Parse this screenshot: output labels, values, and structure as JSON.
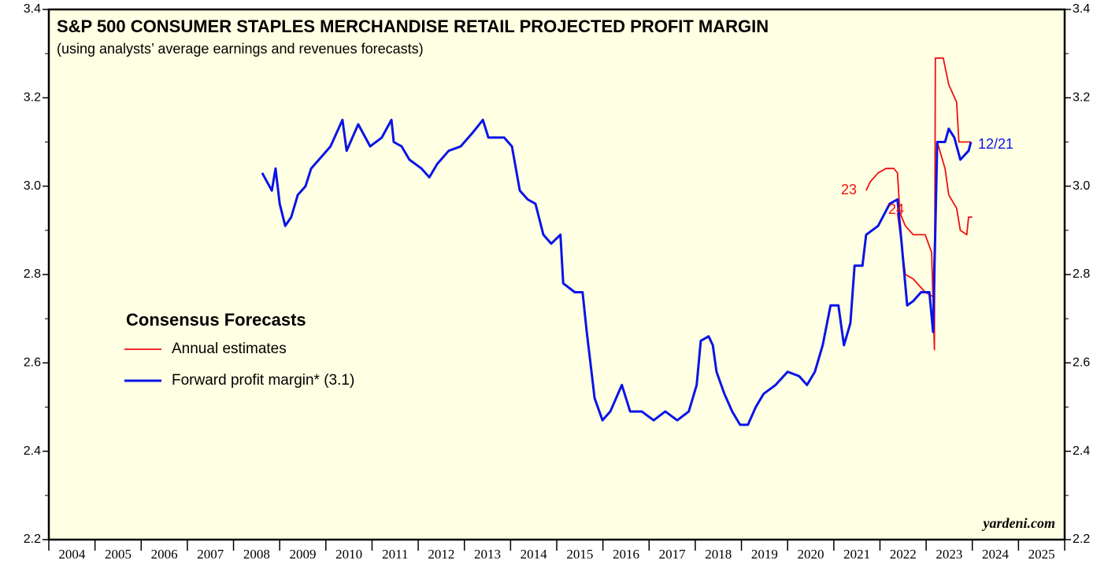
{
  "chart_data": {
    "type": "line",
    "title": "S&P 500 CONSUMER STAPLES MERCHANDISE RETAIL PROJECTED PROFIT MARGIN",
    "subtitle": "(using analysts’ average earnings and revenues forecasts)",
    "legend_title": "Consensus Forecasts",
    "source": "yardeni.com",
    "annotations": [
      "23",
      "24",
      "12/21"
    ],
    "xlim": [
      2004,
      2026
    ],
    "xticks": [
      2004,
      2005,
      2006,
      2007,
      2008,
      2009,
      2010,
      2011,
      2012,
      2013,
      2014,
      2015,
      2016,
      2017,
      2018,
      2019,
      2020,
      2021,
      2022,
      2023,
      2024,
      2025
    ],
    "ylim": [
      2.2,
      3.4
    ],
    "yticks": [
      2.2,
      2.4,
      2.6,
      2.8,
      {
        "value": 3,
        "label": "3.0"
      },
      3.2,
      3.4
    ],
    "series": [
      {
        "name": "Annual estimates",
        "color": "#ee1111",
        "x": [
          2021.7,
          2021.79,
          2021.96,
          2022.13,
          2022.3,
          2022.38,
          2022.43,
          2022.55,
          2022.72,
          2022.98,
          2023.12,
          2023.18,
          2023.2,
          2023.37,
          2023.49,
          2023.66,
          2023.71,
          2023.88,
          2023.97,
          null,
          2022.38,
          2022.55,
          2022.72,
          2022.98,
          2023.15,
          2023.24,
          2023.41,
          2023.49,
          2023.66,
          2023.74,
          2023.88,
          2023.92,
          2024.0
        ],
        "values": [
          2.99,
          3.01,
          3.03,
          3.04,
          3.04,
          3.03,
          2.94,
          2.91,
          2.89,
          2.89,
          2.85,
          2.63,
          3.29,
          3.29,
          3.23,
          3.19,
          3.1,
          3.1,
          3.1,
          null,
          2.94,
          2.8,
          2.79,
          2.76,
          2.75,
          3.1,
          3.04,
          2.98,
          2.95,
          2.9,
          2.89,
          2.93,
          2.93
        ]
      },
      {
        "name": "Forward profit margin* (3.1)",
        "color": "#0a14e6",
        "x": [
          2008.62,
          2008.83,
          2008.91,
          2009.0,
          2009.12,
          2009.25,
          2009.39,
          2009.56,
          2009.68,
          2009.85,
          2010.1,
          2010.36,
          2010.45,
          2010.7,
          2010.96,
          2011.21,
          2011.42,
          2011.47,
          2011.64,
          2011.81,
          2012.07,
          2012.24,
          2012.41,
          2012.66,
          2012.92,
          2013.17,
          2013.4,
          2013.52,
          2013.86,
          2014.03,
          2014.2,
          2014.37,
          2014.54,
          2014.71,
          2014.88,
          2015.08,
          2015.14,
          2015.39,
          2015.56,
          2015.65,
          2015.73,
          2015.82,
          2015.99,
          2016.16,
          2016.41,
          2016.59,
          2016.84,
          2017.1,
          2017.35,
          2017.61,
          2017.86,
          2018.03,
          2018.12,
          2018.29,
          2018.38,
          2018.46,
          2018.63,
          2018.8,
          2018.97,
          2019.14,
          2019.31,
          2019.48,
          2019.74,
          2020.0,
          2020.25,
          2020.42,
          2020.59,
          2020.76,
          2020.93,
          2021.1,
          2021.22,
          2021.36,
          2021.45,
          2021.62,
          2021.7,
          2021.96,
          2022.21,
          2022.38,
          2022.47,
          2022.59,
          2022.72,
          2022.89,
          2023.07,
          2023.15,
          2023.24,
          2023.41,
          2023.49,
          2023.61,
          2023.74,
          2023.92,
          2023.97
        ],
        "values": [
          3.03,
          2.99,
          3.04,
          2.96,
          2.91,
          2.93,
          2.98,
          3.0,
          3.04,
          3.06,
          3.09,
          3.15,
          3.08,
          3.14,
          3.09,
          3.11,
          3.15,
          3.1,
          3.09,
          3.06,
          3.04,
          3.02,
          3.05,
          3.08,
          3.09,
          3.12,
          3.15,
          3.11,
          3.11,
          3.09,
          2.99,
          2.97,
          2.96,
          2.89,
          2.87,
          2.89,
          2.78,
          2.76,
          2.76,
          2.67,
          2.6,
          2.52,
          2.47,
          2.49,
          2.55,
          2.49,
          2.49,
          2.47,
          2.49,
          2.47,
          2.49,
          2.55,
          2.65,
          2.66,
          2.64,
          2.58,
          2.53,
          2.49,
          2.46,
          2.46,
          2.5,
          2.53,
          2.55,
          2.58,
          2.57,
          2.55,
          2.58,
          2.64,
          2.73,
          2.73,
          2.64,
          2.69,
          2.82,
          2.82,
          2.89,
          2.91,
          2.96,
          2.97,
          2.87,
          2.73,
          2.74,
          2.76,
          2.76,
          2.67,
          3.1,
          3.1,
          3.13,
          3.11,
          3.06,
          3.08,
          3.1
        ]
      }
    ]
  }
}
